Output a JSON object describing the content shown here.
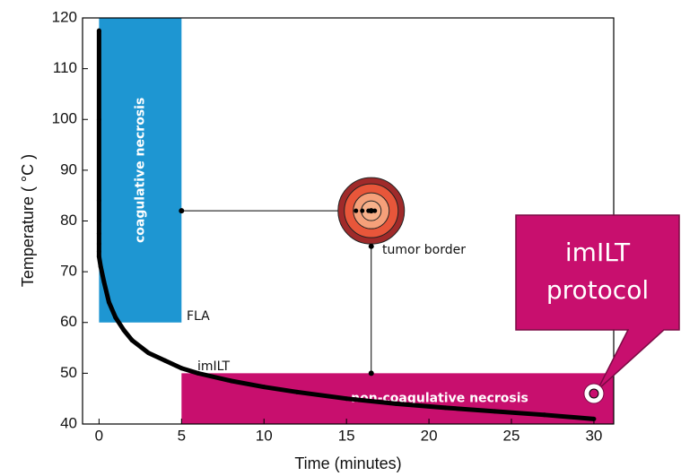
{
  "chart_data": {
    "type": "line",
    "x_label": "Time (minutes)",
    "y_label": "Temperature ( °C )",
    "xlim": [
      -1,
      31.2
    ],
    "ylim": [
      40,
      120
    ],
    "xticks": [
      0,
      5,
      10,
      15,
      20,
      25,
      30
    ],
    "yticks": [
      40,
      50,
      60,
      70,
      80,
      90,
      100,
      110,
      120
    ],
    "series": [
      {
        "color": "#000000",
        "x": [
          0,
          0,
          0,
          0,
          0,
          0,
          0,
          0,
          0.1,
          0.3,
          0.6,
          1,
          1.5,
          2,
          3,
          4,
          5,
          6,
          8,
          10,
          12,
          15,
          18,
          21,
          24,
          27,
          30
        ],
        "values": [
          117.5,
          100,
          84,
          80,
          77.5,
          75.5,
          74,
          73,
          71,
          68,
          64,
          61,
          58.5,
          56.5,
          54,
          52.5,
          51,
          50,
          48.5,
          47.3,
          46.3,
          45,
          44,
          43.2,
          42.5,
          41.8,
          41
        ]
      }
    ],
    "regions": [
      {
        "label": "coagulative necrosis",
        "x": [
          0,
          5
        ],
        "y": [
          60,
          120
        ],
        "color": "#1e96d2"
      },
      {
        "label": "non-coagulative necrosis",
        "x": [
          5,
          31.2
        ],
        "y": [
          40,
          50
        ],
        "color": "#c80f6e"
      }
    ],
    "connectors": [
      {
        "x": [
          5,
          16.5
        ],
        "y": [
          82,
          82
        ]
      },
      {
        "x": [
          16.5,
          16.5
        ],
        "y": [
          75,
          50
        ]
      }
    ],
    "tumor": {
      "x": 16.5,
      "y": 82
    },
    "target": {
      "x": 30,
      "y": 46
    },
    "annotations": [
      "FLA",
      "imILT",
      "tumor border"
    ],
    "callout": [
      "imILT",
      "protocol"
    ]
  }
}
